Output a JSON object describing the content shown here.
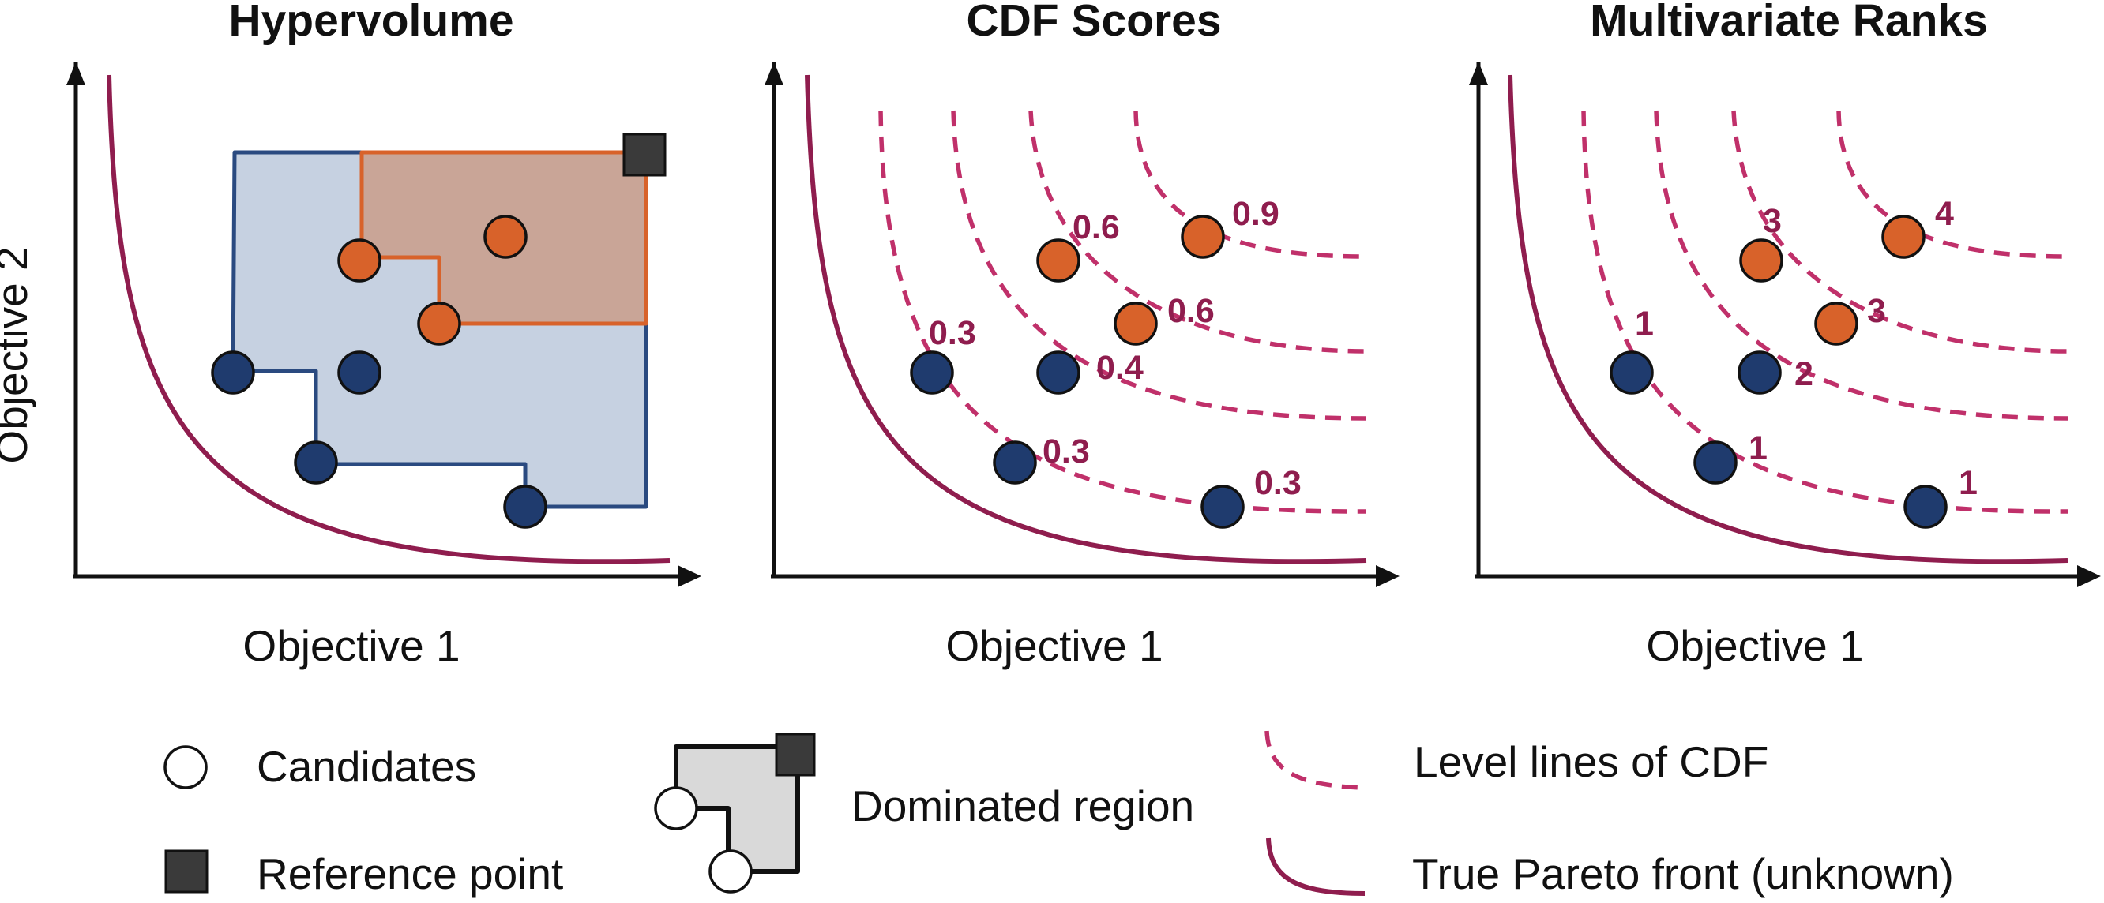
{
  "panels": [
    {
      "title": "Hypervolume",
      "xlabel": "Objective 1",
      "ylabel": "Objective 2"
    },
    {
      "title": "CDF Scores",
      "xlabel": "Objective 1",
      "labels": [
        "0.9",
        "0.6",
        "0.6",
        "0.3",
        "0.4",
        "0.3",
        "0.3"
      ]
    },
    {
      "title": "Multivariate Ranks",
      "xlabel": "Objective 1",
      "labels": [
        "4",
        "3",
        "3",
        "1",
        "2",
        "1",
        "1"
      ]
    }
  ],
  "legend": {
    "candidates": "Candidates",
    "reference_point": "Reference point",
    "dominated_region": "Dominated region",
    "level_lines": "Level lines of CDF",
    "pareto_front": "True Pareto front (unknown)"
  },
  "colors": {
    "blue_points": "#1f3b6e",
    "orange_points": "#d8622a",
    "blue_region": "#c6d1e1",
    "orange_region": "#c9a597",
    "pareto_front": "#8f1d4e",
    "level_lines": "#c0306a"
  }
}
